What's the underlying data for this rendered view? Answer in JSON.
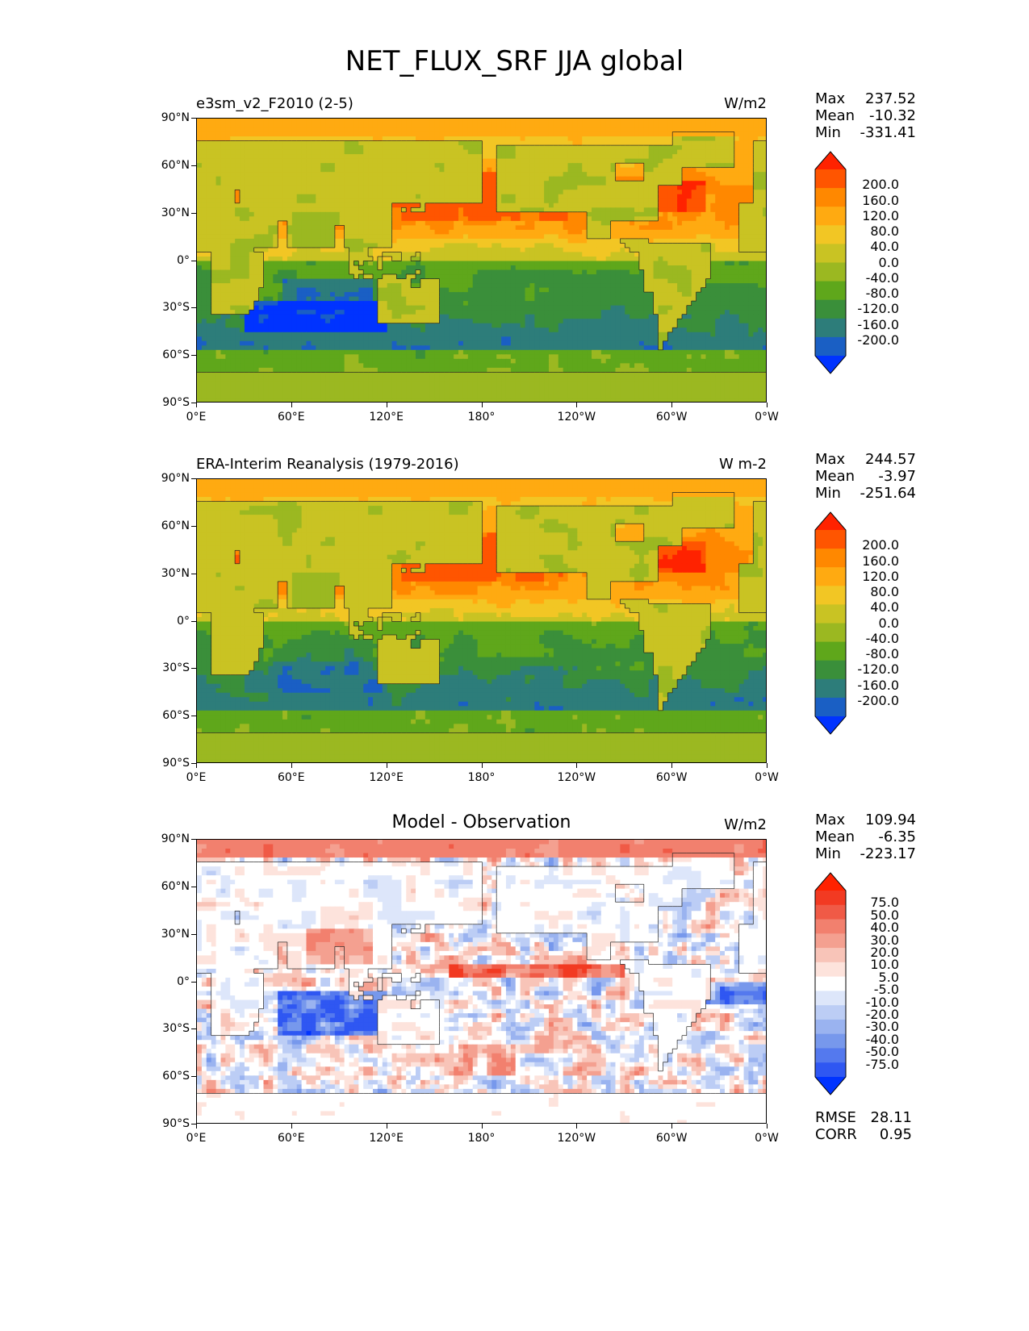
{
  "figure": {
    "title": "NET_FLUX_SRF JJA global"
  },
  "panels": [
    {
      "id": "test",
      "title_left": "e3sm_v2_F2010 (2-5)",
      "title_center": "",
      "units": "W/m2",
      "stats": {
        "max": "237.52",
        "mean": "-10.32",
        "min": "-331.41"
      },
      "colorbar": {
        "labels": [
          "200.0",
          "160.0",
          "120.0",
          "80.0",
          "40.0",
          "0.0",
          "-40.0",
          "-80.0",
          "-120.0",
          "-160.0",
          "-200.0"
        ],
        "colors": [
          "#ff2200",
          "#ff5500",
          "#ff8800",
          "#ffaa11",
          "#f2c624",
          "#c9c323",
          "#9bb821",
          "#5fa71b",
          "#3a8f3a",
          "#2d7d7a",
          "#1a5fc4",
          "#0033ff"
        ]
      }
    },
    {
      "id": "reference",
      "title_left": "ERA-Interim Reanalysis (1979-2016)",
      "title_center": "",
      "units": "W m-2",
      "stats": {
        "max": "244.57",
        "mean": "-3.97",
        "min": "-251.64"
      },
      "colorbar": {
        "labels": [
          "200.0",
          "160.0",
          "120.0",
          "80.0",
          "40.0",
          "0.0",
          "-40.0",
          "-80.0",
          "-120.0",
          "-160.0",
          "-200.0"
        ],
        "colors": [
          "#ff2200",
          "#ff5500",
          "#ff8800",
          "#ffaa11",
          "#f2c624",
          "#c9c323",
          "#9bb821",
          "#5fa71b",
          "#3a8f3a",
          "#2d7d7a",
          "#1a5fc4",
          "#0033ff"
        ]
      }
    },
    {
      "id": "difference",
      "title_left": "",
      "title_center": "Model - Observation",
      "units": "W/m2",
      "stats": {
        "max": "109.94",
        "mean": "-6.35",
        "min": "-223.17",
        "rmse": "28.11",
        "corr": "0.95"
      },
      "colorbar": {
        "labels": [
          "75.0",
          "50.0",
          "40.0",
          "30.0",
          "20.0",
          "10.0",
          "5.0",
          "-5.0",
          "-10.0",
          "-20.0",
          "-30.0",
          "-40.0",
          "-50.0",
          "-75.0"
        ],
        "colors": [
          "#ff2200",
          "#f23a22",
          "#f05a46",
          "#f2806e",
          "#f4a090",
          "#f8c4b8",
          "#fde3dc",
          "#ffffff",
          "#dde6fa",
          "#bccdf5",
          "#9ab3f0",
          "#7798ec",
          "#5479ee",
          "#2f57f2",
          "#0033ff"
        ]
      }
    }
  ],
  "stat_labels": {
    "max": "Max",
    "mean": "Mean",
    "min": "Min",
    "rmse": "RMSE",
    "corr": "CORR"
  },
  "axes": {
    "lat_ticks": [
      "90°N",
      "60°N",
      "30°N",
      "0°",
      "30°S",
      "60°S",
      "90°S"
    ],
    "lon_ticks": [
      "0°E",
      "60°E",
      "120°E",
      "180°",
      "120°W",
      "60°W",
      "0°W"
    ]
  },
  "chart_data": [
    {
      "type": "heatmap",
      "title": "e3sm_v2_F2010 (2-5)",
      "variable": "NET_FLUX_SRF",
      "season": "JJA",
      "units": "W/m2",
      "xlim": [
        0,
        360
      ],
      "ylim": [
        -90,
        90
      ],
      "levels": [
        -200,
        -160,
        -120,
        -80,
        -40,
        0,
        40,
        80,
        120,
        160,
        200
      ],
      "max": 237.52,
      "mean": -10.32,
      "min": -331.41
    },
    {
      "type": "heatmap",
      "title": "ERA-Interim Reanalysis (1979-2016)",
      "variable": "NET_FLUX_SRF",
      "season": "JJA",
      "units": "W m-2",
      "xlim": [
        0,
        360
      ],
      "ylim": [
        -90,
        90
      ],
      "levels": [
        -200,
        -160,
        -120,
        -80,
        -40,
        0,
        40,
        80,
        120,
        160,
        200
      ],
      "max": 244.57,
      "mean": -3.97,
      "min": -251.64
    },
    {
      "type": "heatmap",
      "title": "Model - Observation",
      "variable": "NET_FLUX_SRF",
      "season": "JJA",
      "units": "W/m2",
      "xlim": [
        0,
        360
      ],
      "ylim": [
        -90,
        90
      ],
      "levels": [
        -75,
        -50,
        -40,
        -30,
        -20,
        -10,
        -5,
        5,
        10,
        20,
        30,
        40,
        50,
        75
      ],
      "max": 109.94,
      "mean": -6.35,
      "min": -223.17,
      "rmse": 28.11,
      "corr": 0.95
    }
  ]
}
